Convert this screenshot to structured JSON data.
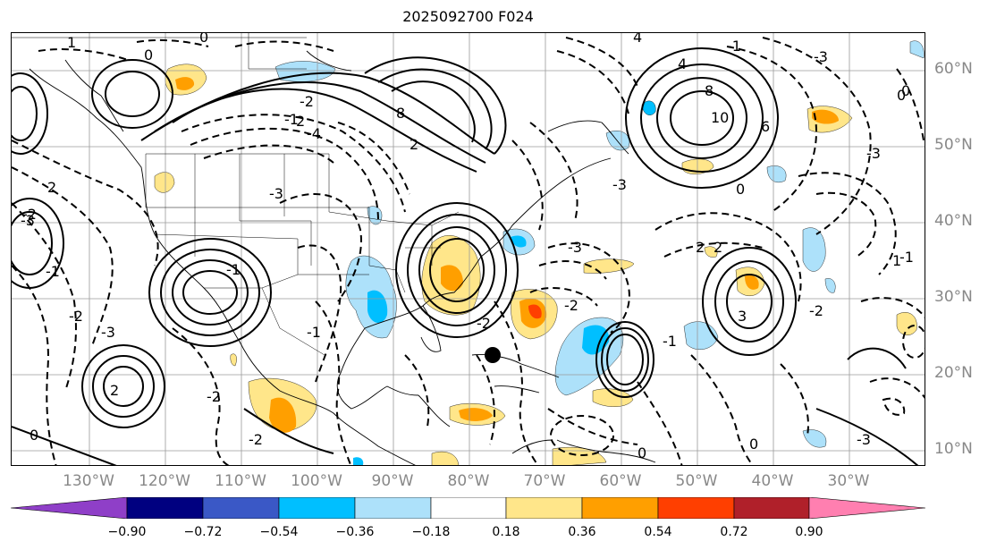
{
  "title": "2025092700 F024",
  "lat_labels": [
    "60°N",
    "50°N",
    "40°N",
    "30°N",
    "20°N",
    "10°N"
  ],
  "lon_labels": [
    "130°W",
    "120°W",
    "110°W",
    "100°W",
    "90°W",
    "80°W",
    "70°W",
    "60°W",
    "50°W",
    "40°W",
    "30°W"
  ],
  "colorbar": {
    "ticks": [
      "−0.90",
      "−0.72",
      "−0.54",
      "−0.36",
      "−0.18",
      "0.18",
      "0.36",
      "0.54",
      "0.72",
      "0.90"
    ],
    "colors": {
      "under": "#8f3fc8",
      "c1": "#000080",
      "c2": "#3a58c6",
      "c3": "#00bfff",
      "c4": "#ade1fa",
      "neutral": "#ffffff",
      "c6": "#ffe68a",
      "c7": "#ff9f00",
      "c8": "#ff3f00",
      "c9": "#b0202a",
      "over": "#ff7fb0"
    }
  },
  "contour_labels": [
    "1",
    "0",
    "0",
    "-1",
    "2",
    "-2",
    "-4",
    "-3",
    "8",
    "2",
    "4",
    "4",
    "8",
    "10",
    "6",
    "-3",
    "-3",
    "0",
    "-1",
    "0",
    "-3",
    "-3",
    "-2",
    "-2",
    "2",
    "-3",
    "-2",
    "-1",
    "-1",
    "2",
    "-3",
    "-2",
    "3",
    "-2",
    "-1",
    "0",
    "0",
    "0",
    "-1",
    "-2",
    "-2",
    "2",
    "2",
    "-3",
    "1",
    "0",
    "-1"
  ]
}
